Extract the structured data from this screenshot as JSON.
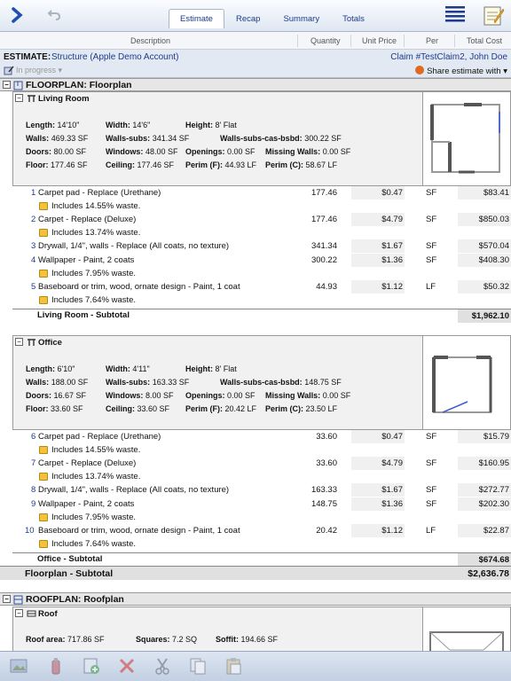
{
  "tabs": [
    "Estimate",
    "Recap",
    "Summary",
    "Totals"
  ],
  "columns": {
    "description": "Description",
    "quantity": "Quantity",
    "unit_price": "Unit Price",
    "per": "Per",
    "total_cost": "Total Cost"
  },
  "estimate": {
    "label": "ESTIMATE:",
    "name": "Structure (Apple Demo Account)",
    "claim": "Claim #TestClaim2, John Doe",
    "status": "In progress",
    "share": "Share estimate with"
  },
  "floorplan": {
    "title": "FLOORPLAN: Floorplan",
    "subtotal_label": "Floorplan - Subtotal",
    "subtotal": "$2,636.78"
  },
  "rooms": [
    {
      "name": "Living Room",
      "length": "14'10\"",
      "width": "14'6\"",
      "height": "8' Flat",
      "walls": "469.33 SF",
      "walls_subs": "341.34 SF",
      "walls_subs_cas": "300.22 SF",
      "doors": "80.00 SF",
      "windows": "48.00 SF",
      "openings": "0.00 SF",
      "missing_walls": "0.00 SF",
      "floor": "177.46 SF",
      "ceiling": "177.46 SF",
      "perim_f": "44.93 LF",
      "perim_c": "58.67 LF",
      "subtotal_label": "Living Room - Subtotal",
      "subtotal": "$1,962.10",
      "items": [
        {
          "num": "1",
          "desc": "Carpet pad - Replace (Urethane)",
          "qty": "177.46",
          "price": "$0.47",
          "per": "SF",
          "total": "$83.41",
          "note": "Includes 14.55% waste."
        },
        {
          "num": "2",
          "desc": "Carpet - Replace (Deluxe)",
          "qty": "177.46",
          "price": "$4.79",
          "per": "SF",
          "total": "$850.03",
          "note": "Includes 13.74% waste."
        },
        {
          "num": "3",
          "desc": "Drywall, 1/4\", walls - Replace (All coats, no texture)",
          "qty": "341.34",
          "price": "$1.67",
          "per": "SF",
          "total": "$570.04",
          "note": ""
        },
        {
          "num": "4",
          "desc": "Wallpaper - Paint, 2 coats",
          "qty": "300.22",
          "price": "$1.36",
          "per": "SF",
          "total": "$408.30",
          "note": "Includes 7.95% waste."
        },
        {
          "num": "5",
          "desc": "Baseboard or trim, wood, ornate design - Paint, 1 coat",
          "qty": "44.93",
          "price": "$1.12",
          "per": "LF",
          "total": "$50.32",
          "note": "Includes 7.64% waste."
        }
      ]
    },
    {
      "name": "Office",
      "length": "6'10\"",
      "width": "4'11\"",
      "height": "8' Flat",
      "walls": "188.00 SF",
      "walls_subs": "163.33 SF",
      "walls_subs_cas": "148.75 SF",
      "doors": "16.67 SF",
      "windows": "8.00 SF",
      "openings": "0.00 SF",
      "missing_walls": "0.00 SF",
      "floor": "33.60 SF",
      "ceiling": "33.60 SF",
      "perim_f": "20.42 LF",
      "perim_c": "23.50 LF",
      "subtotal_label": "Office - Subtotal",
      "subtotal": "$674.68",
      "items": [
        {
          "num": "6",
          "desc": "Carpet pad - Replace (Urethane)",
          "qty": "33.60",
          "price": "$0.47",
          "per": "SF",
          "total": "$15.79",
          "note": "Includes 14.55% waste."
        },
        {
          "num": "7",
          "desc": "Carpet - Replace (Deluxe)",
          "qty": "33.60",
          "price": "$4.79",
          "per": "SF",
          "total": "$160.95",
          "note": "Includes 13.74% waste."
        },
        {
          "num": "8",
          "desc": "Drywall, 1/4\", walls - Replace (All coats, no texture)",
          "qty": "163.33",
          "price": "$1.67",
          "per": "SF",
          "total": "$272.77",
          "note": ""
        },
        {
          "num": "9",
          "desc": "Wallpaper - Paint, 2 coats",
          "qty": "148.75",
          "price": "$1.36",
          "per": "SF",
          "total": "$202.30",
          "note": "Includes 7.95% waste."
        },
        {
          "num": "10",
          "desc": "Baseboard or trim, wood, ornate design - Paint, 1 coat",
          "qty": "20.42",
          "price": "$1.12",
          "per": "LF",
          "total": "$22.87",
          "note": "Includes 7.64% waste."
        }
      ]
    }
  ],
  "labels": {
    "length": "Length:",
    "width": "Width:",
    "height": "Height:",
    "walls": "Walls:",
    "walls_subs": "Walls-subs:",
    "walls_subs_cas": "Walls-subs-cas-bsbd:",
    "doors": "Doors:",
    "windows": "Windows:",
    "openings": "Openings:",
    "missing_walls": "Missing Walls:",
    "floor": "Floor:",
    "ceiling": "Ceiling:",
    "perim_f": "Perim (F):",
    "perim_c": "Perim (C):"
  },
  "roofplan": {
    "title": "ROOFPLAN: Roofplan",
    "room": "Roof",
    "roof_area_label": "Roof area:",
    "roof_area": "717.86 SF",
    "squares_label": "Squares:",
    "squares": "7.2 SQ",
    "soffit_label": "Soffit:",
    "soffit": "194.66 SF"
  },
  "icons": [
    "chevron-right-icon",
    "undo-icon",
    "list-icon",
    "notepad-icon",
    "photo-icon",
    "bottle-icon",
    "add-item-icon",
    "delete-icon",
    "cut-icon",
    "copy-icon",
    "paste-icon"
  ]
}
